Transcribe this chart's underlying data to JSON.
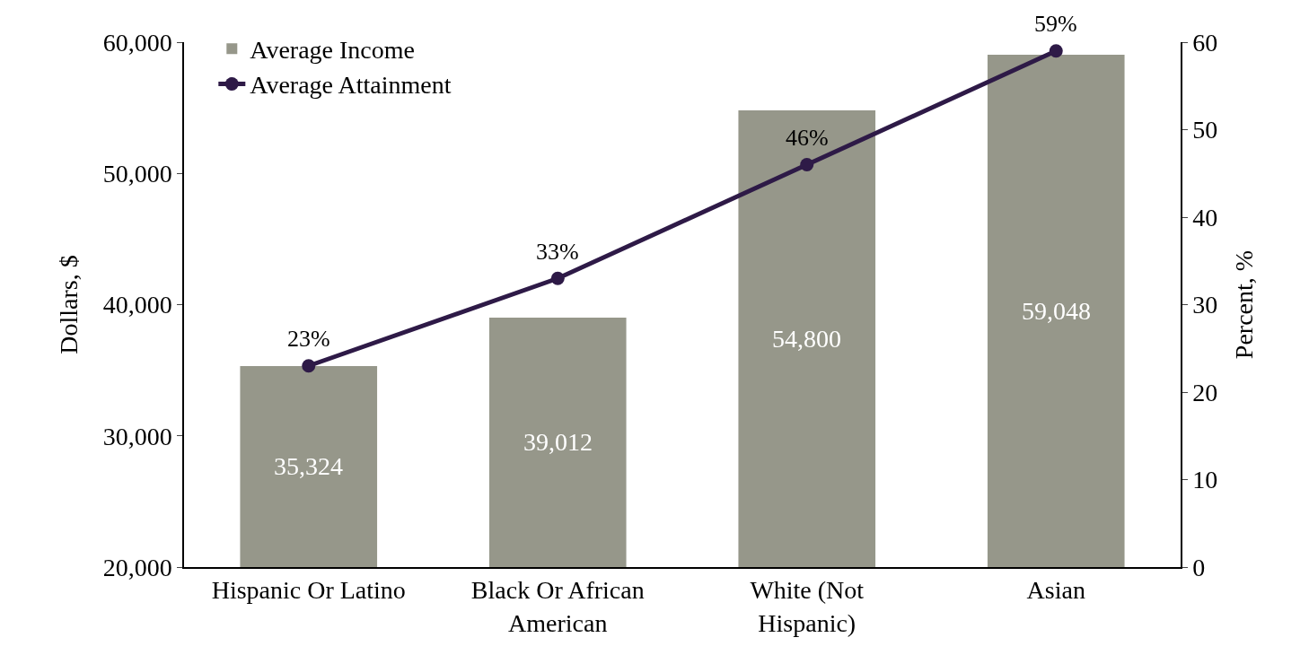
{
  "chart_data": {
    "type": "bar",
    "categories": [
      "Hispanic Or Latino",
      "Black Or African American",
      "White (Not Hispanic)",
      "Asian"
    ],
    "series": [
      {
        "name": "Average Income",
        "color": "#96978a",
        "values": [
          35324,
          39012,
          54800,
          59048
        ],
        "value_labels": [
          "35,324",
          "39,012",
          "54,800",
          "59,048"
        ]
      },
      {
        "name": "Average Attainment",
        "type": "line",
        "axis": "y2",
        "color": "#2e1a47",
        "values": [
          23,
          33,
          46,
          59
        ],
        "value_labels": [
          "23%",
          "33%",
          "46%",
          "59%"
        ]
      }
    ],
    "ylabel": "Dollars, $",
    "y2label": "Percent, %",
    "ylim": [
      20000,
      60000
    ],
    "yticks": [
      {
        "value": 20000,
        "label": "20,000"
      },
      {
        "value": 30000,
        "label": "30,000"
      },
      {
        "value": 40000,
        "label": "40,000"
      },
      {
        "value": 50000,
        "label": "50,000"
      },
      {
        "value": 60000,
        "label": "60,000"
      }
    ],
    "y2lim": [
      0,
      60
    ],
    "y2ticks": [
      0,
      10,
      20,
      30,
      40,
      50,
      60
    ],
    "grid": false,
    "legend": "top left",
    "marker": "circle",
    "line_style": "solid"
  }
}
